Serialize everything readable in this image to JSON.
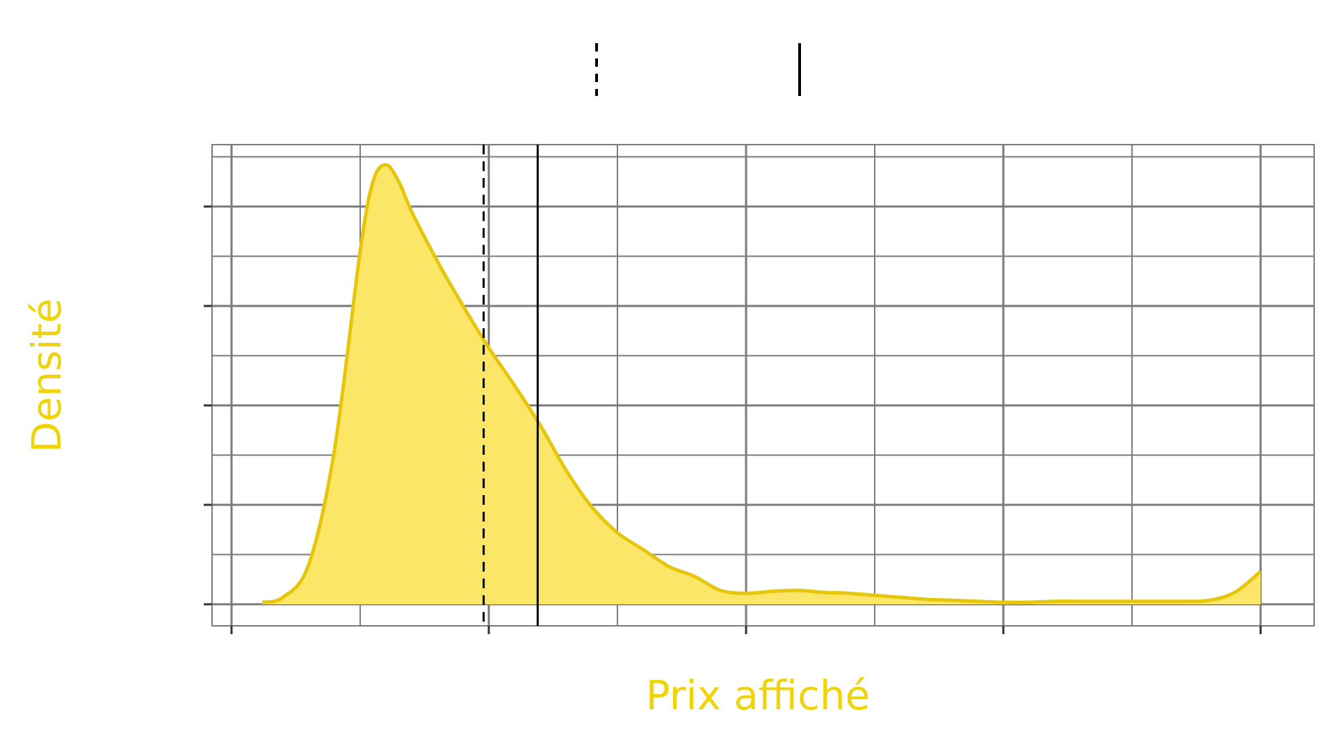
{
  "colors": {
    "accent": "#e6c60c",
    "fill": "#fbe667",
    "grid": "#7a7a7a",
    "text": "#f0d40a",
    "faint_label": "#f3f3f3",
    "line": "#000000"
  },
  "chart_data": {
    "type": "area",
    "xlabel": "Prix affiché",
    "ylabel": "Densité",
    "x_range": [
      0,
      4
    ],
    "y_range": [
      0,
      4.6
    ],
    "grid": true,
    "legend": {
      "placement": "top-center",
      "entries": [
        {
          "style": "dashed-line",
          "label": ""
        },
        {
          "style": "solid-line",
          "label": ""
        }
      ]
    },
    "reference_lines": [
      {
        "style": "dashed",
        "x": 0.98
      },
      {
        "style": "solid",
        "x": 1.19
      }
    ],
    "series": [
      {
        "x": [
          0.12,
          0.2,
          0.3,
          0.4,
          0.5,
          0.55,
          0.6,
          0.65,
          0.7,
          0.8,
          0.9,
          1.0,
          1.1,
          1.2,
          1.3,
          1.4,
          1.5,
          1.6,
          1.7,
          1.8,
          1.9,
          2.0,
          2.1,
          2.2,
          2.3,
          2.4,
          2.5,
          2.6,
          2.7,
          2.8,
          2.9,
          3.0,
          3.1,
          3.2,
          3.3,
          3.4,
          3.5,
          3.6,
          3.7,
          3.8,
          3.9,
          4.0
        ],
        "y": [
          0.02,
          0.07,
          0.4,
          1.55,
          3.55,
          4.25,
          4.42,
          4.25,
          3.95,
          3.45,
          3.0,
          2.58,
          2.2,
          1.8,
          1.35,
          0.98,
          0.72,
          0.55,
          0.38,
          0.28,
          0.14,
          0.11,
          0.13,
          0.14,
          0.12,
          0.11,
          0.09,
          0.07,
          0.05,
          0.04,
          0.03,
          0.02,
          0.02,
          0.03,
          0.03,
          0.03,
          0.03,
          0.03,
          0.03,
          0.04,
          0.12,
          0.33
        ]
      }
    ]
  }
}
